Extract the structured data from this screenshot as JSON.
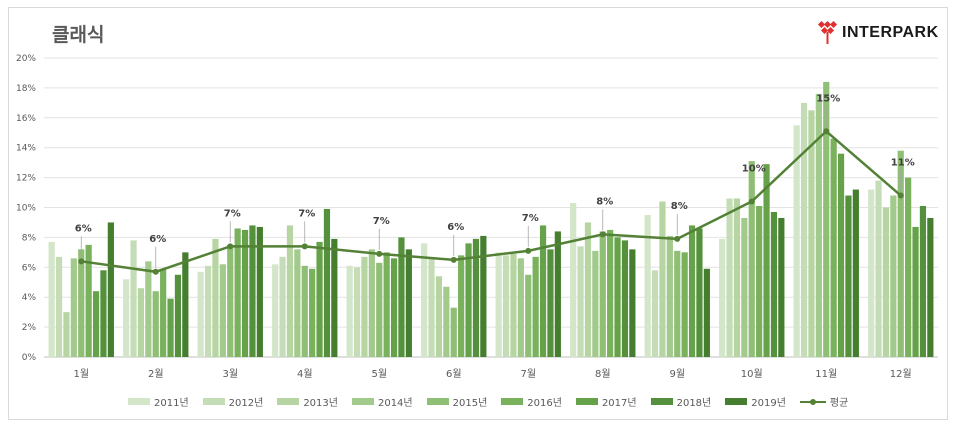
{
  "title": "클래식",
  "brand": {
    "name": "INTERPARK",
    "accent": "#e03030"
  },
  "chart_data": {
    "type": "bar",
    "categories": [
      "1월",
      "2월",
      "3월",
      "4월",
      "5월",
      "6월",
      "7월",
      "8월",
      "9월",
      "10월",
      "11월",
      "12월"
    ],
    "ylim": [
      0,
      20
    ],
    "yticks": [
      "0%",
      "2%",
      "4%",
      "6%",
      "8%",
      "10%",
      "12%",
      "14%",
      "16%",
      "18%",
      "20%"
    ],
    "grid": true,
    "legend_position": "bottom",
    "series": [
      {
        "name": "2011년",
        "color": "#d4e6c9",
        "values": [
          7.7,
          5.2,
          5.7,
          6.2,
          6.1,
          7.6,
          7.0,
          10.3,
          9.5,
          7.9,
          15.5,
          11.2
        ]
      },
      {
        "name": "2012년",
        "color": "#c5ddb6",
        "values": [
          6.7,
          7.8,
          6.1,
          6.7,
          6.0,
          6.6,
          6.8,
          7.4,
          5.8,
          10.6,
          17.0,
          11.8
        ]
      },
      {
        "name": "2013년",
        "color": "#b6d5a3",
        "values": [
          3.0,
          4.6,
          7.9,
          8.8,
          6.7,
          5.4,
          6.9,
          9.0,
          10.4,
          10.6,
          16.5,
          10.0
        ]
      },
      {
        "name": "2014년",
        "color": "#a3ca8d",
        "values": [
          6.6,
          6.4,
          6.2,
          7.2,
          7.2,
          4.7,
          6.6,
          7.1,
          8.1,
          9.3,
          17.6,
          10.8
        ]
      },
      {
        "name": "2015년",
        "color": "#8fbf74",
        "values": [
          7.2,
          4.4,
          7.5,
          6.1,
          6.3,
          3.3,
          5.5,
          8.4,
          7.1,
          13.1,
          18.4,
          13.8
        ]
      },
      {
        "name": "2016년",
        "color": "#79b15d",
        "values": [
          7.5,
          5.9,
          8.6,
          5.9,
          7.0,
          6.8,
          6.7,
          8.5,
          7.0,
          10.1,
          14.6,
          12.0
        ]
      },
      {
        "name": "2017년",
        "color": "#66a24a",
        "values": [
          4.4,
          3.9,
          8.5,
          7.7,
          6.6,
          7.6,
          8.8,
          8.0,
          8.8,
          12.9,
          13.6,
          8.7
        ]
      },
      {
        "name": "2018년",
        "color": "#55903c",
        "values": [
          5.8,
          5.5,
          8.8,
          9.9,
          8.0,
          7.9,
          7.2,
          7.8,
          8.6,
          9.7,
          10.8,
          10.1
        ]
      },
      {
        "name": "2019년",
        "color": "#457e2f",
        "values": [
          9.0,
          7.0,
          8.7,
          7.9,
          7.2,
          8.1,
          8.4,
          7.2,
          5.9,
          9.3,
          11.2,
          9.3
        ]
      }
    ],
    "average": {
      "name": "평균",
      "color": "#538135",
      "values": [
        6.4,
        5.7,
        7.4,
        7.4,
        6.9,
        6.5,
        7.1,
        8.2,
        7.9,
        10.4,
        15.1,
        10.8
      ],
      "labels": [
        "6%",
        "6%",
        "7%",
        "7%",
        "7%",
        "6%",
        "7%",
        "8%",
        "8%",
        "10%",
        "15%",
        "11%"
      ]
    }
  }
}
